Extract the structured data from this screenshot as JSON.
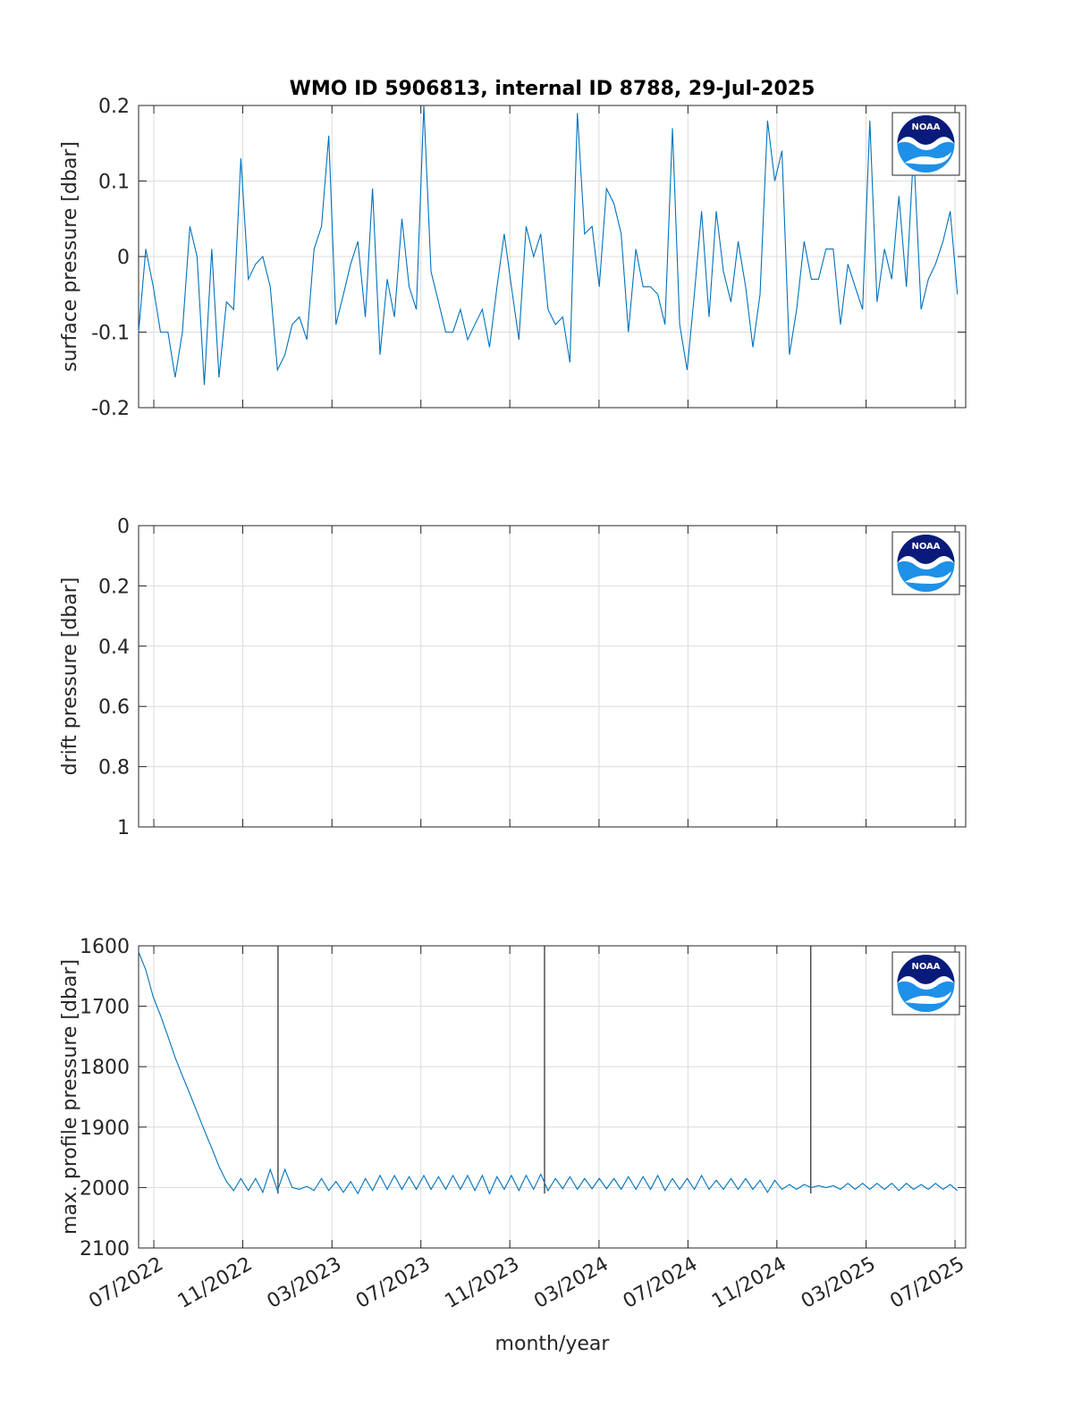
{
  "chart_data": [
    {
      "type": "line",
      "title": "WMO ID 5906813, internal ID 8788, 29-Jul-2025",
      "ylabel": "surface pressure [dbar]",
      "xlim": [
        2022.443,
        2025.54
      ],
      "ylim": [
        -0.2,
        0.2
      ],
      "yticks": [
        -0.2,
        -0.1,
        0,
        0.1,
        0.2
      ],
      "grid": true,
      "x": [
        2022.443,
        2022.47,
        2022.498,
        2022.525,
        2022.553,
        2022.58,
        2022.607,
        2022.635,
        2022.662,
        2022.689,
        2022.717,
        2022.744,
        2022.772,
        2022.799,
        2022.826,
        2022.854,
        2022.881,
        2022.908,
        2022.936,
        2022.963,
        2022.991,
        2023.018,
        2023.045,
        2023.073,
        2023.1,
        2023.128,
        2023.155,
        2023.182,
        2023.21,
        2023.237,
        2023.264,
        2023.292,
        2023.319,
        2023.347,
        2023.374,
        2023.401,
        2023.429,
        2023.456,
        2023.483,
        2023.511,
        2023.538,
        2023.566,
        2023.593,
        2023.62,
        2023.648,
        2023.675,
        2023.702,
        2023.73,
        2023.757,
        2023.785,
        2023.812,
        2023.839,
        2023.867,
        2023.894,
        2023.922,
        2023.949,
        2023.976,
        2024.004,
        2024.031,
        2024.058,
        2024.086,
        2024.113,
        2024.141,
        2024.168,
        2024.195,
        2024.223,
        2024.25,
        2024.277,
        2024.305,
        2024.332,
        2024.36,
        2024.387,
        2024.414,
        2024.442,
        2024.469,
        2024.497,
        2024.524,
        2024.551,
        2024.579,
        2024.606,
        2024.633,
        2024.661,
        2024.688,
        2024.716,
        2024.743,
        2024.77,
        2024.798,
        2024.825,
        2024.852,
        2024.88,
        2024.907,
        2024.935,
        2024.962,
        2024.989,
        2025.017,
        2025.044,
        2025.071,
        2025.099,
        2025.126,
        2025.154,
        2025.181,
        2025.208,
        2025.236,
        2025.263,
        2025.29,
        2025.318,
        2025.345,
        2025.373,
        2025.4,
        2025.427,
        2025.455,
        2025.482,
        2025.509
      ],
      "series": [
        {
          "color": "#0072bd",
          "values": [
            -0.1,
            0.01,
            -0.04,
            -0.1,
            -0.1,
            -0.16,
            -0.1,
            0.04,
            0.0,
            -0.17,
            0.01,
            -0.16,
            -0.06,
            -0.07,
            0.13,
            -0.03,
            -0.01,
            0.0,
            -0.04,
            -0.15,
            -0.13,
            -0.09,
            -0.08,
            -0.11,
            0.01,
            0.04,
            0.16,
            -0.09,
            -0.05,
            -0.01,
            0.02,
            -0.08,
            0.09,
            -0.13,
            -0.03,
            -0.08,
            0.05,
            -0.04,
            -0.07,
            0.2,
            -0.02,
            -0.06,
            -0.1,
            -0.1,
            -0.07,
            -0.11,
            -0.09,
            -0.07,
            -0.12,
            -0.04,
            0.03,
            -0.04,
            -0.11,
            0.04,
            0.0,
            0.03,
            -0.07,
            -0.09,
            -0.08,
            -0.14,
            0.19,
            0.03,
            0.04,
            -0.04,
            0.09,
            0.07,
            0.03,
            -0.1,
            0.01,
            -0.04,
            -0.04,
            -0.05,
            -0.09,
            0.17,
            -0.09,
            -0.15,
            -0.05,
            0.06,
            -0.08,
            0.06,
            -0.02,
            -0.06,
            0.02,
            -0.04,
            -0.12,
            -0.05,
            0.18,
            0.1,
            0.14,
            -0.13,
            -0.07,
            0.02,
            -0.03,
            -0.03,
            0.01,
            0.01,
            -0.09,
            -0.01,
            -0.04,
            -0.07,
            0.18,
            -0.06,
            0.01,
            -0.03,
            0.08,
            -0.04,
            0.14,
            -0.07,
            -0.03,
            -0.01,
            0.02,
            0.06,
            -0.05
          ]
        }
      ]
    },
    {
      "type": "line",
      "ylabel": "drift pressure [dbar]",
      "xlim": [
        2022.443,
        2025.54
      ],
      "ylim": [
        0,
        1
      ],
      "y_direction": "reverse",
      "yticks": [
        0,
        0.2,
        0.4,
        0.6,
        0.8,
        1
      ],
      "grid": true
    },
    {
      "type": "line",
      "ylabel": "max. profile pressure [dbar]",
      "xlabel": "month/year",
      "xlim": [
        2022.443,
        2025.54
      ],
      "ylim": [
        1600,
        2100
      ],
      "y_direction": "reverse",
      "yticks": [
        1600,
        1700,
        1800,
        1900,
        2000,
        2100
      ],
      "grid": true,
      "xticks": [
        {
          "value": 2022.5,
          "label": "07/2022"
        },
        {
          "value": 2022.833,
          "label": "11/2022"
        },
        {
          "value": 2023.167,
          "label": "03/2023"
        },
        {
          "value": 2023.5,
          "label": "07/2023"
        },
        {
          "value": 2023.833,
          "label": "11/2023"
        },
        {
          "value": 2024.167,
          "label": "03/2024"
        },
        {
          "value": 2024.5,
          "label": "07/2024"
        },
        {
          "value": 2024.833,
          "label": "11/2024"
        },
        {
          "value": 2025.167,
          "label": "03/2025"
        },
        {
          "value": 2025.5,
          "label": "07/2025"
        }
      ],
      "x": [
        2022.443,
        2022.47,
        2022.498,
        2022.525,
        2022.553,
        2022.58,
        2022.607,
        2022.635,
        2022.662,
        2022.689,
        2022.717,
        2022.744,
        2022.772,
        2022.799,
        2022.826,
        2022.854,
        2022.881,
        2022.908,
        2022.936,
        2022.963,
        2022.991,
        2023.018,
        2023.045,
        2023.073,
        2023.1,
        2023.128,
        2023.155,
        2023.182,
        2023.21,
        2023.237,
        2023.264,
        2023.292,
        2023.319,
        2023.347,
        2023.374,
        2023.401,
        2023.429,
        2023.456,
        2023.483,
        2023.511,
        2023.538,
        2023.566,
        2023.593,
        2023.62,
        2023.648,
        2023.675,
        2023.702,
        2023.73,
        2023.757,
        2023.785,
        2023.812,
        2023.839,
        2023.867,
        2023.894,
        2023.922,
        2023.949,
        2023.976,
        2024.004,
        2024.031,
        2024.058,
        2024.086,
        2024.113,
        2024.141,
        2024.168,
        2024.195,
        2024.223,
        2024.25,
        2024.277,
        2024.305,
        2024.332,
        2024.36,
        2024.387,
        2024.414,
        2024.442,
        2024.469,
        2024.497,
        2024.524,
        2024.551,
        2024.579,
        2024.606,
        2024.633,
        2024.661,
        2024.688,
        2024.716,
        2024.743,
        2024.77,
        2024.798,
        2024.825,
        2024.852,
        2024.88,
        2024.907,
        2024.935,
        2024.962,
        2024.989,
        2025.017,
        2025.044,
        2025.071,
        2025.099,
        2025.126,
        2025.154,
        2025.181,
        2025.208,
        2025.236,
        2025.263,
        2025.29,
        2025.318,
        2025.345,
        2025.373,
        2025.4,
        2025.427,
        2025.455,
        2025.482,
        2025.509
      ],
      "series": [
        {
          "color": "#0072bd",
          "values": [
            1610,
            1640,
            1685,
            1715,
            1750,
            1785,
            1815,
            1845,
            1875,
            1905,
            1935,
            1965,
            1990,
            2005,
            1985,
            2005,
            1985,
            2008,
            1970,
            2005,
            1970,
            2000,
            2003,
            1998,
            2005,
            1985,
            2005,
            1990,
            2008,
            1990,
            2010,
            1985,
            2005,
            1980,
            2003,
            1980,
            2003,
            1982,
            2003,
            1980,
            2003,
            1982,
            2003,
            1980,
            2003,
            1980,
            2005,
            1980,
            2010,
            1982,
            2003,
            1980,
            2005,
            1980,
            2003,
            1978,
            2005,
            1985,
            2002,
            1982,
            2003,
            1985,
            2002,
            1985,
            2002,
            1985,
            2003,
            1982,
            2003,
            1982,
            2003,
            1980,
            2005,
            1985,
            2003,
            1985,
            2003,
            1980,
            2003,
            1988,
            2003,
            1985,
            2003,
            1985,
            2003,
            1988,
            2008,
            1988,
            2003,
            1995,
            2003,
            1995,
            2000,
            1997,
            2000,
            1997,
            2003,
            1993,
            2003,
            1993,
            2003,
            1993,
            2003,
            1993,
            2005,
            1993,
            2003,
            1995,
            2003,
            1993,
            2003,
            1995,
            2005
          ]
        }
      ],
      "vlines": {
        "color": "#262626",
        "x": [
          2022.965,
          2023.963,
          2024.96
        ],
        "y_end": 2010
      }
    }
  ]
}
